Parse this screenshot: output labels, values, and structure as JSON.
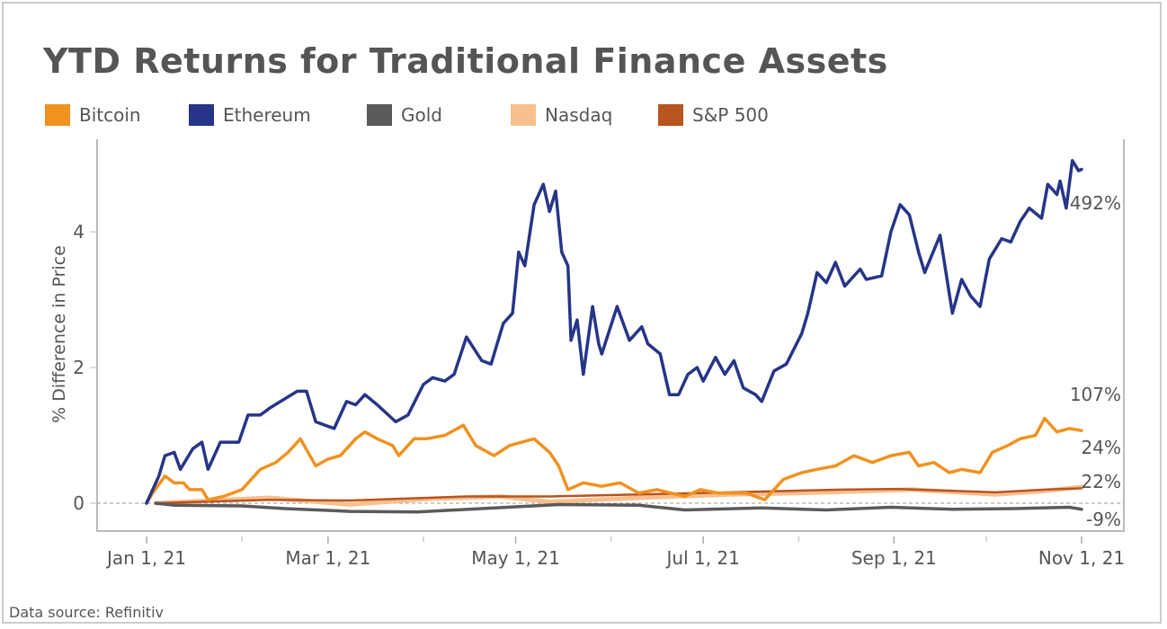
{
  "chart_data": {
    "type": "line",
    "title": "YTD Returns for Traditional Finance Assets",
    "ylabel": "% Difference in Price",
    "xlabel": "",
    "ylim": [
      -0.4,
      5.3
    ],
    "xlim": [
      "2020-12-19",
      "2021-11-14"
    ],
    "yticks": [
      0,
      2,
      4
    ],
    "xticks": [
      {
        "date": "2021-01-01",
        "label": "Jan 1, 21"
      },
      {
        "date": "2021-03-01",
        "label": "Mar 1, 21"
      },
      {
        "date": "2021-05-01",
        "label": "May 1, 21"
      },
      {
        "date": "2021-07-01",
        "label": "Jul 1, 21"
      },
      {
        "date": "2021-09-01",
        "label": "Sep 1, 21"
      },
      {
        "date": "2021-11-01",
        "label": "Nov 1, 21"
      }
    ],
    "minor_xticks": [
      "2021-02-01",
      "2021-04-01",
      "2021-06-01",
      "2021-08-01",
      "2021-10-01"
    ],
    "zero_line": "dashed",
    "grid": false,
    "legend_position": "top-left",
    "source": "Data source: Refinitiv",
    "series": [
      {
        "name": "Bitcoin",
        "color": "#F0921E",
        "end_label": "107%",
        "points": [
          [
            "2021-01-01",
            0
          ],
          [
            "2021-01-03",
            0.15
          ],
          [
            "2021-01-07",
            0.4
          ],
          [
            "2021-01-10",
            0.3
          ],
          [
            "2021-01-13",
            0.3
          ],
          [
            "2021-01-15",
            0.2
          ],
          [
            "2021-01-19",
            0.2
          ],
          [
            "2021-01-21",
            0.05
          ],
          [
            "2021-01-26",
            0.1
          ],
          [
            "2021-02-01",
            0.2
          ],
          [
            "2021-02-07",
            0.5
          ],
          [
            "2021-02-12",
            0.6
          ],
          [
            "2021-02-16",
            0.75
          ],
          [
            "2021-02-20",
            0.95
          ],
          [
            "2021-02-25",
            0.55
          ],
          [
            "2021-03-01",
            0.65
          ],
          [
            "2021-03-05",
            0.7
          ],
          [
            "2021-03-10",
            0.95
          ],
          [
            "2021-03-13",
            1.05
          ],
          [
            "2021-03-17",
            0.95
          ],
          [
            "2021-03-22",
            0.85
          ],
          [
            "2021-03-24",
            0.7
          ],
          [
            "2021-03-29",
            0.95
          ],
          [
            "2021-04-02",
            0.95
          ],
          [
            "2021-04-08",
            1.0
          ],
          [
            "2021-04-14",
            1.15
          ],
          [
            "2021-04-18",
            0.85
          ],
          [
            "2021-04-24",
            0.7
          ],
          [
            "2021-04-29",
            0.85
          ],
          [
            "2021-05-03",
            0.9
          ],
          [
            "2021-05-07",
            0.95
          ],
          [
            "2021-05-12",
            0.75
          ],
          [
            "2021-05-15",
            0.55
          ],
          [
            "2021-05-18",
            0.2
          ],
          [
            "2021-05-23",
            0.3
          ],
          [
            "2021-05-29",
            0.25
          ],
          [
            "2021-06-04",
            0.3
          ],
          [
            "2021-06-10",
            0.15
          ],
          [
            "2021-06-16",
            0.2
          ],
          [
            "2021-06-25",
            0.1
          ],
          [
            "2021-06-30",
            0.2
          ],
          [
            "2021-07-06",
            0.15
          ],
          [
            "2021-07-15",
            0.15
          ],
          [
            "2021-07-21",
            0.05
          ],
          [
            "2021-07-27",
            0.35
          ],
          [
            "2021-08-02",
            0.45
          ],
          [
            "2021-08-07",
            0.5
          ],
          [
            "2021-08-13",
            0.55
          ],
          [
            "2021-08-19",
            0.7
          ],
          [
            "2021-08-25",
            0.6
          ],
          [
            "2021-08-31",
            0.7
          ],
          [
            "2021-09-06",
            0.75
          ],
          [
            "2021-09-09",
            0.55
          ],
          [
            "2021-09-14",
            0.6
          ],
          [
            "2021-09-19",
            0.45
          ],
          [
            "2021-09-23",
            0.5
          ],
          [
            "2021-09-29",
            0.45
          ],
          [
            "2021-10-03",
            0.75
          ],
          [
            "2021-10-08",
            0.85
          ],
          [
            "2021-10-12",
            0.95
          ],
          [
            "2021-10-17",
            1.0
          ],
          [
            "2021-10-20",
            1.25
          ],
          [
            "2021-10-24",
            1.05
          ],
          [
            "2021-10-28",
            1.1
          ],
          [
            "2021-11-01",
            1.07
          ]
        ]
      },
      {
        "name": "Ethereum",
        "color": "#263587",
        "end_label": "492%",
        "points": [
          [
            "2021-01-01",
            0
          ],
          [
            "2021-01-05",
            0.4
          ],
          [
            "2021-01-07",
            0.7
          ],
          [
            "2021-01-10",
            0.75
          ],
          [
            "2021-01-12",
            0.5
          ],
          [
            "2021-01-16",
            0.8
          ],
          [
            "2021-01-19",
            0.9
          ],
          [
            "2021-01-21",
            0.5
          ],
          [
            "2021-01-25",
            0.9
          ],
          [
            "2021-01-31",
            0.9
          ],
          [
            "2021-02-03",
            1.3
          ],
          [
            "2021-02-07",
            1.3
          ],
          [
            "2021-02-10",
            1.4
          ],
          [
            "2021-02-19",
            1.65
          ],
          [
            "2021-02-22",
            1.65
          ],
          [
            "2021-02-25",
            1.2
          ],
          [
            "2021-02-28",
            1.15
          ],
          [
            "2021-03-03",
            1.1
          ],
          [
            "2021-03-07",
            1.5
          ],
          [
            "2021-03-10",
            1.45
          ],
          [
            "2021-03-13",
            1.6
          ],
          [
            "2021-03-17",
            1.45
          ],
          [
            "2021-03-23",
            1.2
          ],
          [
            "2021-03-27",
            1.3
          ],
          [
            "2021-04-01",
            1.75
          ],
          [
            "2021-04-04",
            1.85
          ],
          [
            "2021-04-08",
            1.8
          ],
          [
            "2021-04-11",
            1.9
          ],
          [
            "2021-04-15",
            2.45
          ],
          [
            "2021-04-20",
            2.1
          ],
          [
            "2021-04-23",
            2.05
          ],
          [
            "2021-04-27",
            2.65
          ],
          [
            "2021-04-30",
            2.8
          ],
          [
            "2021-05-02",
            3.7
          ],
          [
            "2021-05-04",
            3.5
          ],
          [
            "2021-05-07",
            4.4
          ],
          [
            "2021-05-10",
            4.7
          ],
          [
            "2021-05-12",
            4.3
          ],
          [
            "2021-05-14",
            4.6
          ],
          [
            "2021-05-16",
            3.7
          ],
          [
            "2021-05-18",
            3.5
          ],
          [
            "2021-05-19",
            2.4
          ],
          [
            "2021-05-21",
            2.7
          ],
          [
            "2021-05-23",
            1.9
          ],
          [
            "2021-05-26",
            2.9
          ],
          [
            "2021-05-28",
            2.35
          ],
          [
            "2021-05-29",
            2.2
          ],
          [
            "2021-06-03",
            2.9
          ],
          [
            "2021-06-07",
            2.4
          ],
          [
            "2021-06-11",
            2.6
          ],
          [
            "2021-06-13",
            2.35
          ],
          [
            "2021-06-17",
            2.2
          ],
          [
            "2021-06-20",
            1.6
          ],
          [
            "2021-06-23",
            1.6
          ],
          [
            "2021-06-26",
            1.9
          ],
          [
            "2021-06-29",
            2.0
          ],
          [
            "2021-07-01",
            1.8
          ],
          [
            "2021-07-05",
            2.15
          ],
          [
            "2021-07-08",
            1.9
          ],
          [
            "2021-07-11",
            2.1
          ],
          [
            "2021-07-14",
            1.7
          ],
          [
            "2021-07-18",
            1.6
          ],
          [
            "2021-07-20",
            1.5
          ],
          [
            "2021-07-24",
            1.95
          ],
          [
            "2021-07-28",
            2.05
          ],
          [
            "2021-08-02",
            2.5
          ],
          [
            "2021-08-04",
            2.8
          ],
          [
            "2021-08-07",
            3.4
          ],
          [
            "2021-08-10",
            3.25
          ],
          [
            "2021-08-13",
            3.55
          ],
          [
            "2021-08-16",
            3.2
          ],
          [
            "2021-08-21",
            3.45
          ],
          [
            "2021-08-23",
            3.3
          ],
          [
            "2021-08-28",
            3.35
          ],
          [
            "2021-08-31",
            4.0
          ],
          [
            "2021-09-03",
            4.4
          ],
          [
            "2021-09-06",
            4.25
          ],
          [
            "2021-09-09",
            3.7
          ],
          [
            "2021-09-11",
            3.4
          ],
          [
            "2021-09-16",
            3.95
          ],
          [
            "2021-09-20",
            2.8
          ],
          [
            "2021-09-23",
            3.3
          ],
          [
            "2021-09-26",
            3.05
          ],
          [
            "2021-09-29",
            2.9
          ],
          [
            "2021-10-02",
            3.6
          ],
          [
            "2021-10-06",
            3.9
          ],
          [
            "2021-10-09",
            3.85
          ],
          [
            "2021-10-12",
            4.15
          ],
          [
            "2021-10-15",
            4.35
          ],
          [
            "2021-10-19",
            4.2
          ],
          [
            "2021-10-21",
            4.7
          ],
          [
            "2021-10-24",
            4.55
          ],
          [
            "2021-10-25",
            4.75
          ],
          [
            "2021-10-27",
            4.35
          ],
          [
            "2021-10-29",
            5.05
          ],
          [
            "2021-10-31",
            4.9
          ],
          [
            "2021-11-01",
            4.92
          ]
        ]
      },
      {
        "name": "Gold",
        "color": "#5A5A5A",
        "end_label": "-9%",
        "points": [
          [
            "2021-01-04",
            0
          ],
          [
            "2021-01-10",
            -0.03
          ],
          [
            "2021-02-01",
            -0.04
          ],
          [
            "2021-02-15",
            -0.08
          ],
          [
            "2021-03-08",
            -0.12
          ],
          [
            "2021-03-30",
            -0.13
          ],
          [
            "2021-04-20",
            -0.08
          ],
          [
            "2021-05-15",
            -0.02
          ],
          [
            "2021-06-10",
            -0.03
          ],
          [
            "2021-06-25",
            -0.1
          ],
          [
            "2021-07-20",
            -0.07
          ],
          [
            "2021-08-10",
            -0.1
          ],
          [
            "2021-08-31",
            -0.06
          ],
          [
            "2021-09-20",
            -0.09
          ],
          [
            "2021-10-10",
            -0.08
          ],
          [
            "2021-10-28",
            -0.06
          ],
          [
            "2021-11-01",
            -0.09
          ]
        ]
      },
      {
        "name": "Nasdaq",
        "color": "#F7C08E",
        "end_label": "24%",
        "points": [
          [
            "2021-01-04",
            0
          ],
          [
            "2021-02-10",
            0.08
          ],
          [
            "2021-03-08",
            -0.02
          ],
          [
            "2021-04-01",
            0.06
          ],
          [
            "2021-04-26",
            0.1
          ],
          [
            "2021-05-12",
            0.02
          ],
          [
            "2021-06-10",
            0.08
          ],
          [
            "2021-07-10",
            0.13
          ],
          [
            "2021-08-01",
            0.15
          ],
          [
            "2021-09-07",
            0.2
          ],
          [
            "2021-10-04",
            0.13
          ],
          [
            "2021-10-20",
            0.18
          ],
          [
            "2021-11-01",
            0.24
          ]
        ]
      },
      {
        "name": "S&P 500",
        "color": "#B85420",
        "end_label": "22%",
        "points": [
          [
            "2021-01-04",
            0
          ],
          [
            "2021-02-10",
            0.05
          ],
          [
            "2021-03-08",
            0.04
          ],
          [
            "2021-04-15",
            0.1
          ],
          [
            "2021-05-12",
            0.1
          ],
          [
            "2021-06-10",
            0.13
          ],
          [
            "2021-07-10",
            0.16
          ],
          [
            "2021-08-15",
            0.2
          ],
          [
            "2021-09-02",
            0.21
          ],
          [
            "2021-10-04",
            0.16
          ],
          [
            "2021-10-20",
            0.2
          ],
          [
            "2021-11-01",
            0.22
          ]
        ]
      }
    ]
  }
}
